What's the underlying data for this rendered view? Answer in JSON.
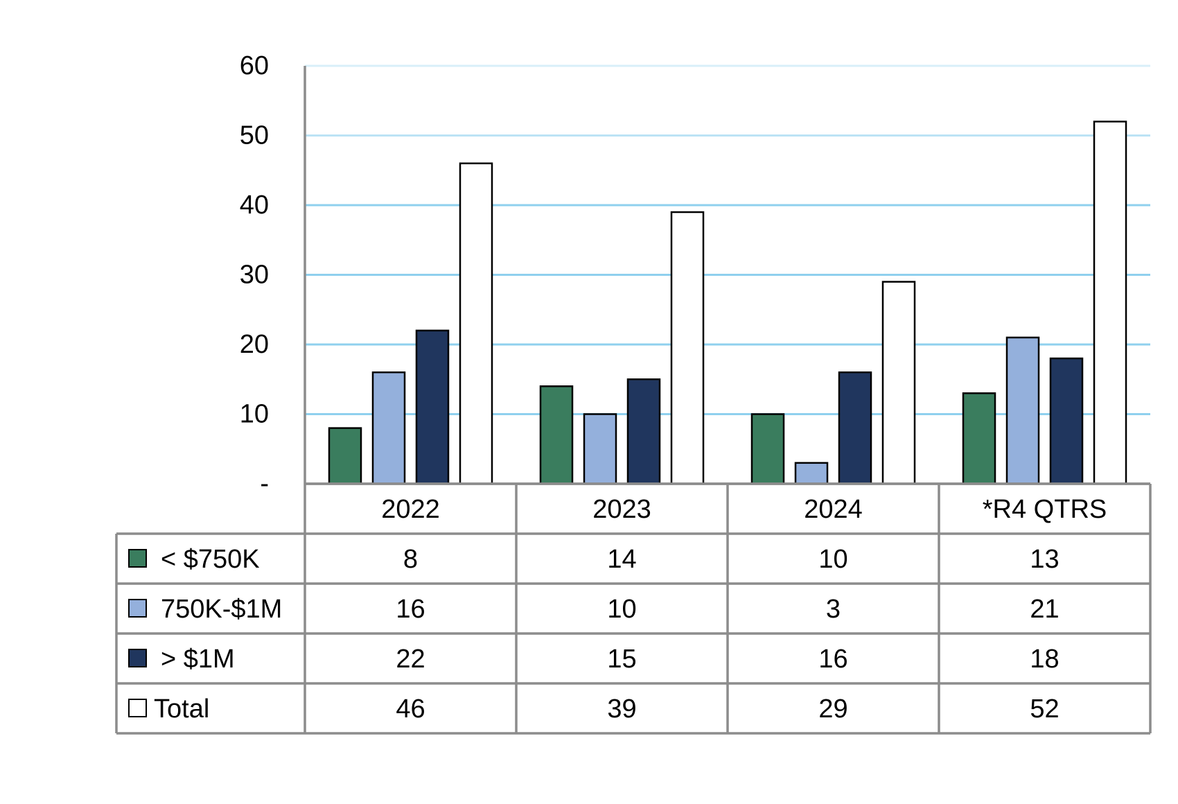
{
  "chart_data": {
    "type": "bar",
    "categories": [
      "2022",
      "2023",
      "2024",
      "*R4 QTRS"
    ],
    "series": [
      {
        "name": "< $750K",
        "values": [
          8,
          14,
          10,
          13
        ],
        "color": "#3a7d5e"
      },
      {
        "name": "750K-$1M",
        "values": [
          16,
          10,
          3,
          21
        ],
        "color": "#94b0dc"
      },
      {
        "name": "> $1M",
        "values": [
          22,
          15,
          16,
          18
        ],
        "color": "#20365e"
      },
      {
        "name": "Total",
        "values": [
          46,
          39,
          29,
          52
        ],
        "color": "#ffffff"
      }
    ],
    "y_ticks": [
      "-",
      "10",
      "20",
      "30",
      "40",
      "50",
      "60"
    ],
    "ylim": [
      0,
      60
    ],
    "grid": true,
    "gridline_color": "#8fd0ee",
    "table_border_color": "#8c8c8c",
    "legend": "data-table"
  }
}
